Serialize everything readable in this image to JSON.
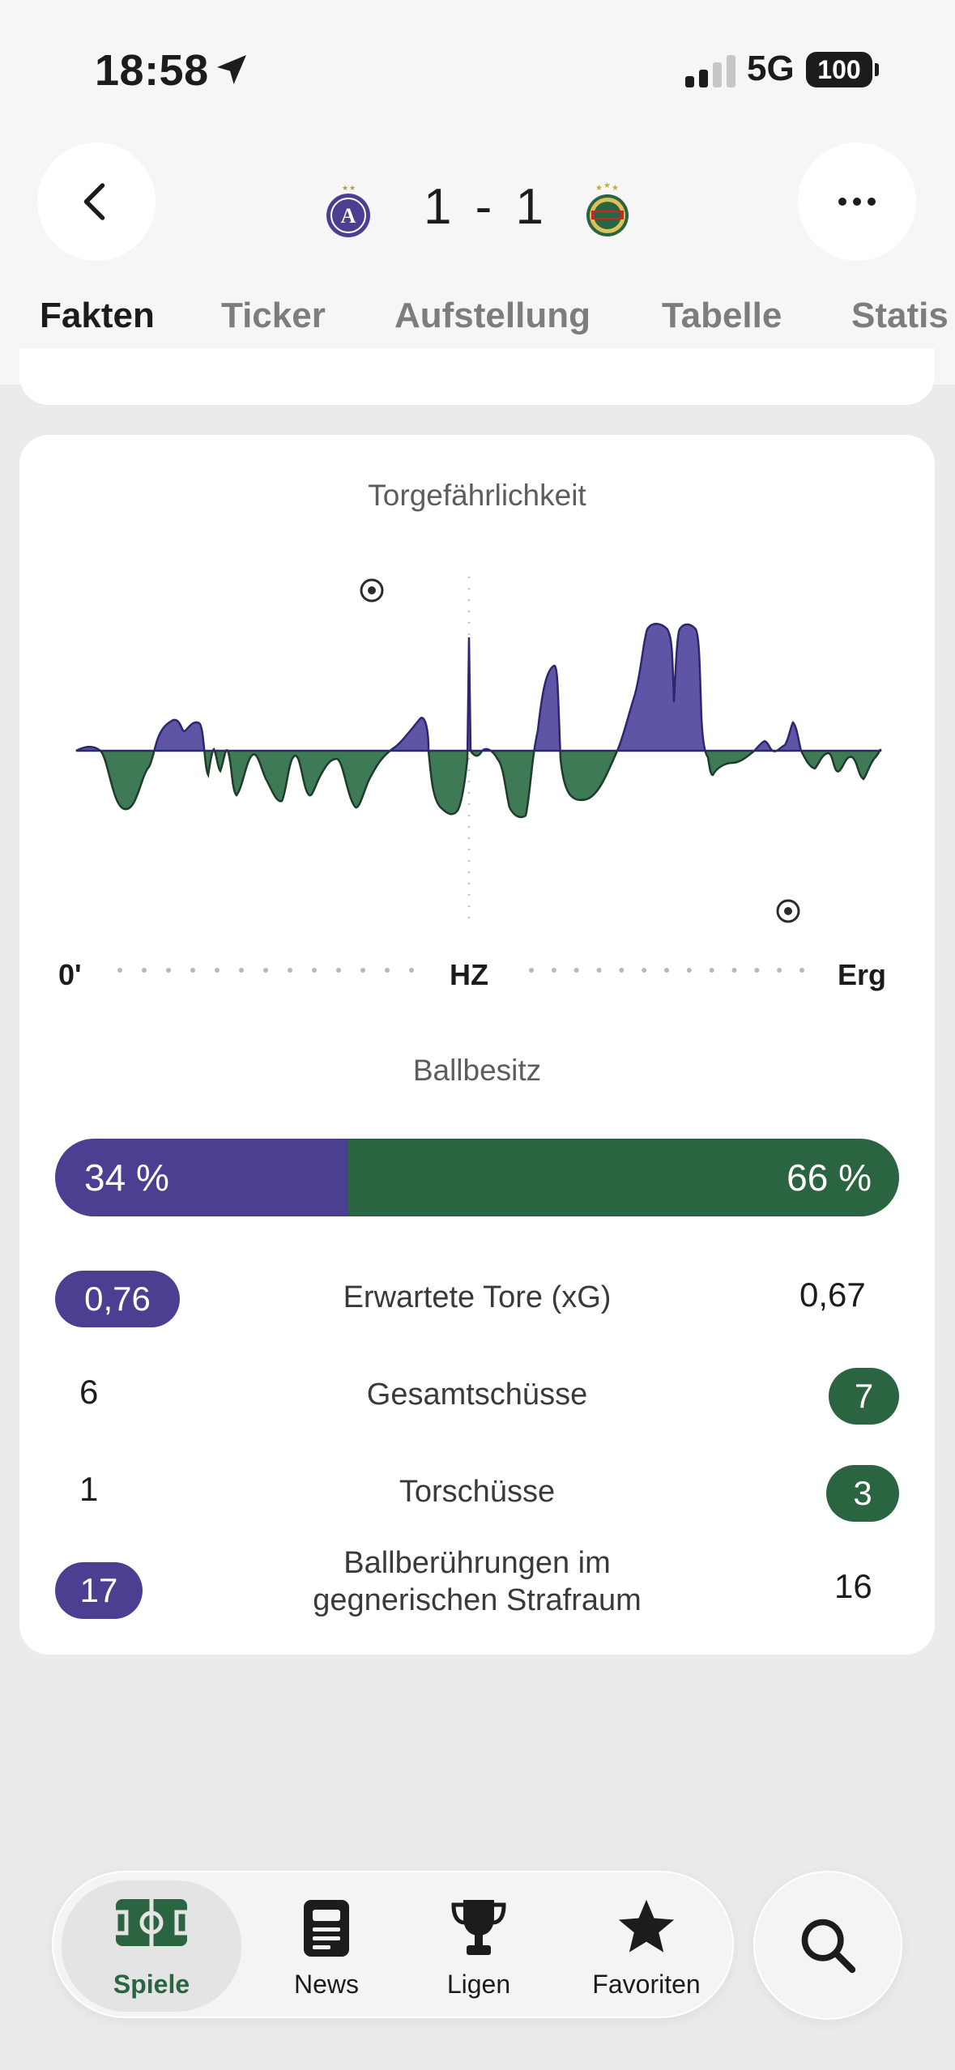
{
  "status_bar": {
    "time": "18:58",
    "network": "5G",
    "battery": "100"
  },
  "header": {
    "score": "1 - 1",
    "home_color": "#4b3f91",
    "away_color": "#2a6440"
  },
  "tabs": [
    {
      "label": "Fakten",
      "active": true
    },
    {
      "label": "Ticker",
      "active": false
    },
    {
      "label": "Aufstellung",
      "active": false
    },
    {
      "label": "Tabelle",
      "active": false
    },
    {
      "label": "Statis",
      "active": false
    }
  ],
  "momentum": {
    "title": "Torgefährlichkeit",
    "axis": {
      "start": "0'",
      "half": "HZ",
      "end": "Erg"
    }
  },
  "possession": {
    "title": "Ballbesitz",
    "home": "34 %",
    "away": "66 %",
    "home_fraction": 0.34
  },
  "stats": [
    {
      "label": "Erwartete Tore (xG)",
      "home": "0,76",
      "away": "0,67",
      "highlight": "home"
    },
    {
      "label": "Gesamtschüsse",
      "home": "6",
      "away": "7",
      "highlight": "away"
    },
    {
      "label": "Torschüsse",
      "home": "1",
      "away": "3",
      "highlight": "away"
    },
    {
      "label": "Ballberührungen im gegnerischen Strafraum",
      "home": "17",
      "away": "16",
      "highlight": "home"
    }
  ],
  "nav": {
    "items": [
      {
        "label": "Spiele",
        "icon": "pitch-icon",
        "active": true
      },
      {
        "label": "News",
        "icon": "news-icon",
        "active": false
      },
      {
        "label": "Ligen",
        "icon": "trophy-icon",
        "active": false
      },
      {
        "label": "Favoriten",
        "icon": "star-icon",
        "active": false
      }
    ],
    "search_icon": "search-icon"
  }
}
